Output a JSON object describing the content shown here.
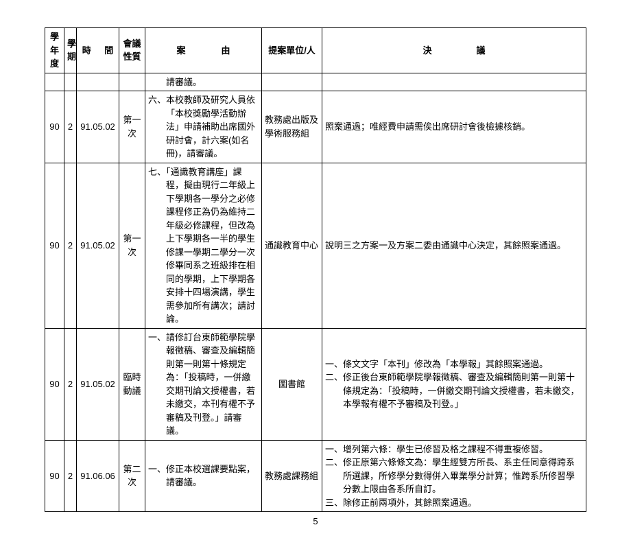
{
  "headers": {
    "year": "學年度",
    "term": "學期",
    "time": "時　間",
    "nature": "會議性質",
    "case": "案　　由",
    "unit": "提案單位/人",
    "resolution": "決　　議"
  },
  "rows": [
    {
      "year": "",
      "term": "",
      "time": "",
      "nature": "",
      "case": "　　請審議。",
      "unit": "",
      "resolution": ""
    },
    {
      "year": "90",
      "term": "2",
      "time": "91.05.02",
      "nature": "第一次",
      "case": "六、本校教師及研究人員依「本校獎勵學活動辦法」申請補助出席國外研討會，計六案(如名冊)，請審議。",
      "unit": "教務處出版及學術服務組",
      "resolution": "照案通過；唯經費申請需俟出席研討會後檢據核銷。"
    },
    {
      "year": "90",
      "term": "2",
      "time": "91.05.02",
      "nature": "第一次",
      "case": "七、「通識教育講座」課程，擬由現行二年級上下學期各一學分之必修課程修正為仍為維持二年級必修課程，但改為上下學期各一半的學生修課一學期二學分一次修畢同系之班級排在相同的學期，上下學期各安排十四場演講，學生需參加所有講次；請討論。",
      "unit": "通識教育中心",
      "resolution": "說明三之方案一及方案二委由通識中心決定，其餘照案通過。"
    },
    {
      "year": "90",
      "term": "2",
      "time": "91.05.02",
      "nature": "臨時動議",
      "case": "一、請修訂台東師範學院學報徵稿、審查及編輯簡則第一則第十條規定為：「投稿時，一併繳交期刊論文授權書，若未繳交，本刊有權不予審稿及刊登。」請審議。",
      "unit": "圖書館",
      "resolution_lines": [
        "一、條文文字「本刊」修改為「本學報」其餘照案通過。",
        "二、修正後台東師範學院學報徵稿、審查及編輯簡則第一則第十條規定為：「投稿時，一併繳交期刊論文授權書，若未繳交，本學報有權不予審稿及刊登。」"
      ]
    },
    {
      "year": "90",
      "term": "2",
      "time": "91.06.06",
      "nature": "第二次",
      "case": "一、修正本校選課要點案，請審議。",
      "unit": "教務處課務組",
      "resolution_lines": [
        "一、增列第六條：學生已修習及格之課程不得重複修習。",
        "二、修正原第六條條文為：學生經雙方所長、系主任同意得跨系所選課，所修學分數得併入畢業學分計算；惟跨系所修習學分數上限由各系所自訂。",
        "三、除修正前兩項外，其餘照案通過。"
      ]
    }
  ],
  "page_number": "5"
}
